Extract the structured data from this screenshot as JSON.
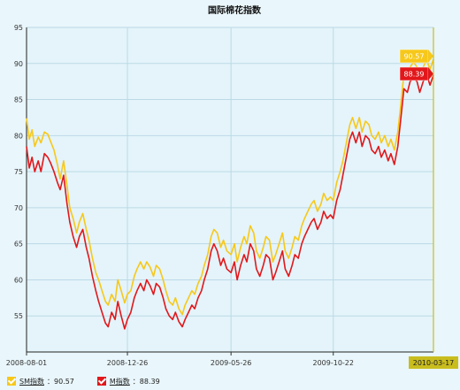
{
  "chart_data": {
    "type": "line",
    "title": "国际棉花指数",
    "ylim": [
      50,
      95
    ],
    "yticks": [
      55,
      60,
      65,
      70,
      75,
      80,
      85,
      90,
      95
    ],
    "x_range": [
      "2008-08-01",
      "2010-03-17"
    ],
    "xticks": [
      "2008-08-01",
      "2008-12-26",
      "2009-05-26",
      "2009-10-22"
    ],
    "last_date": "2010-03-17",
    "grid": true,
    "legend_position": "bottom-left",
    "colors": {
      "SM": "#f7c81a",
      "M": "#e2171b",
      "grid": "#bcd9e6",
      "last_date_box": "#c9bd1e"
    },
    "series": [
      {
        "name": "SM指数",
        "last_value": "90.57",
        "color": "#f7c81a",
        "points": [
          [
            "2008-08-01",
            82.4
          ],
          [
            "2008-08-05",
            79.5
          ],
          [
            "2008-08-09",
            80.8
          ],
          [
            "2008-08-13",
            78.5
          ],
          [
            "2008-08-18",
            79.8
          ],
          [
            "2008-08-22",
            79.0
          ],
          [
            "2008-08-27",
            80.5
          ],
          [
            "2008-09-01",
            80.2
          ],
          [
            "2008-09-05",
            79.2
          ],
          [
            "2008-09-10",
            78.0
          ],
          [
            "2008-09-15",
            76.0
          ],
          [
            "2008-09-19",
            74.0
          ],
          [
            "2008-09-24",
            76.5
          ],
          [
            "2008-09-29",
            73.0
          ],
          [
            "2008-10-03",
            70.0
          ],
          [
            "2008-10-08",
            68.5
          ],
          [
            "2008-10-13",
            66.5
          ],
          [
            "2008-10-17",
            68.0
          ],
          [
            "2008-10-22",
            69.2
          ],
          [
            "2008-10-27",
            67.0
          ],
          [
            "2008-10-31",
            65.5
          ],
          [
            "2008-11-05",
            63.0
          ],
          [
            "2008-11-10",
            61.0
          ],
          [
            "2008-11-14",
            60.0
          ],
          [
            "2008-11-19",
            58.5
          ],
          [
            "2008-11-24",
            57.0
          ],
          [
            "2008-11-28",
            56.5
          ],
          [
            "2008-12-03",
            58.0
          ],
          [
            "2008-12-08",
            57.0
          ],
          [
            "2008-12-12",
            60.0
          ],
          [
            "2008-12-17",
            58.5
          ],
          [
            "2008-12-22",
            56.8
          ],
          [
            "2008-12-26",
            58.0
          ],
          [
            "2008-12-31",
            58.5
          ],
          [
            "2009-01-05",
            60.5
          ],
          [
            "2009-01-09",
            61.5
          ],
          [
            "2009-01-14",
            62.5
          ],
          [
            "2009-01-19",
            61.5
          ],
          [
            "2009-01-23",
            62.5
          ],
          [
            "2009-01-28",
            61.8
          ],
          [
            "2009-02-02",
            60.5
          ],
          [
            "2009-02-06",
            62.0
          ],
          [
            "2009-02-11",
            61.5
          ],
          [
            "2009-02-16",
            60.0
          ],
          [
            "2009-02-20",
            58.5
          ],
          [
            "2009-02-25",
            57.0
          ],
          [
            "2009-03-02",
            56.5
          ],
          [
            "2009-03-06",
            57.5
          ],
          [
            "2009-03-11",
            56.0
          ],
          [
            "2009-03-16",
            55.2
          ],
          [
            "2009-03-20",
            56.5
          ],
          [
            "2009-03-25",
            57.5
          ],
          [
            "2009-03-30",
            58.5
          ],
          [
            "2009-04-03",
            58.0
          ],
          [
            "2009-04-08",
            59.5
          ],
          [
            "2009-04-13",
            60.5
          ],
          [
            "2009-04-17",
            62.0
          ],
          [
            "2009-04-22",
            63.5
          ],
          [
            "2009-04-27",
            66.0
          ],
          [
            "2009-05-01",
            67.0
          ],
          [
            "2009-05-06",
            66.5
          ],
          [
            "2009-05-11",
            64.5
          ],
          [
            "2009-05-15",
            65.5
          ],
          [
            "2009-05-20",
            64.0
          ],
          [
            "2009-05-26",
            63.5
          ],
          [
            "2009-05-31",
            65.0
          ],
          [
            "2009-06-04",
            62.5
          ],
          [
            "2009-06-09",
            64.5
          ],
          [
            "2009-06-14",
            66.0
          ],
          [
            "2009-06-18",
            65.0
          ],
          [
            "2009-06-23",
            67.5
          ],
          [
            "2009-06-28",
            66.5
          ],
          [
            "2009-07-02",
            64.0
          ],
          [
            "2009-07-07",
            63.0
          ],
          [
            "2009-07-12",
            64.5
          ],
          [
            "2009-07-16",
            66.0
          ],
          [
            "2009-07-21",
            65.5
          ],
          [
            "2009-07-26",
            62.5
          ],
          [
            "2009-07-30",
            63.5
          ],
          [
            "2009-08-04",
            65.0
          ],
          [
            "2009-08-09",
            66.5
          ],
          [
            "2009-08-13",
            64.0
          ],
          [
            "2009-08-18",
            63.0
          ],
          [
            "2009-08-23",
            64.5
          ],
          [
            "2009-08-27",
            66.0
          ],
          [
            "2009-09-01",
            65.5
          ],
          [
            "2009-09-06",
            67.5
          ],
          [
            "2009-09-10",
            68.5
          ],
          [
            "2009-09-15",
            69.5
          ],
          [
            "2009-09-20",
            70.5
          ],
          [
            "2009-09-24",
            71.0
          ],
          [
            "2009-09-29",
            69.5
          ],
          [
            "2009-10-04",
            70.5
          ],
          [
            "2009-10-08",
            72.0
          ],
          [
            "2009-10-13",
            71.0
          ],
          [
            "2009-10-18",
            71.5
          ],
          [
            "2009-10-22",
            71.0
          ],
          [
            "2009-10-27",
            73.5
          ],
          [
            "2009-11-01",
            75.0
          ],
          [
            "2009-11-05",
            76.5
          ],
          [
            "2009-11-10",
            79.0
          ],
          [
            "2009-11-15",
            81.5
          ],
          [
            "2009-11-19",
            82.5
          ],
          [
            "2009-11-24",
            81.0
          ],
          [
            "2009-11-29",
            82.5
          ],
          [
            "2009-12-03",
            80.5
          ],
          [
            "2009-12-08",
            82.0
          ],
          [
            "2009-12-13",
            81.5
          ],
          [
            "2009-12-17",
            80.0
          ],
          [
            "2009-12-22",
            79.5
          ],
          [
            "2009-12-27",
            80.5
          ],
          [
            "2009-12-31",
            79.0
          ],
          [
            "2010-01-05",
            80.0
          ],
          [
            "2010-01-10",
            78.5
          ],
          [
            "2010-01-14",
            79.5
          ],
          [
            "2010-01-19",
            78.0
          ],
          [
            "2010-01-24",
            80.5
          ],
          [
            "2010-01-28",
            84.0
          ],
          [
            "2010-02-02",
            88.5
          ],
          [
            "2010-02-07",
            88.0
          ],
          [
            "2010-02-11",
            89.5
          ],
          [
            "2010-02-16",
            90.2
          ],
          [
            "2010-02-21",
            89.5
          ],
          [
            "2010-02-25",
            88.0
          ],
          [
            "2010-03-02",
            89.5
          ],
          [
            "2010-03-07",
            90.5
          ],
          [
            "2010-03-12",
            89.2
          ],
          [
            "2010-03-17",
            90.57
          ]
        ]
      },
      {
        "name": "M指数",
        "last_value": "88.39",
        "color": "#e2171b",
        "points": [
          [
            "2008-08-01",
            78.5
          ],
          [
            "2008-08-05",
            75.5
          ],
          [
            "2008-08-09",
            77.0
          ],
          [
            "2008-08-13",
            75.0
          ],
          [
            "2008-08-18",
            76.5
          ],
          [
            "2008-08-22",
            75.0
          ],
          [
            "2008-08-27",
            77.5
          ],
          [
            "2008-09-01",
            77.0
          ],
          [
            "2008-09-05",
            76.2
          ],
          [
            "2008-09-10",
            75.0
          ],
          [
            "2008-09-15",
            73.5
          ],
          [
            "2008-09-19",
            72.5
          ],
          [
            "2008-09-24",
            74.5
          ],
          [
            "2008-09-29",
            70.5
          ],
          [
            "2008-10-03",
            68.0
          ],
          [
            "2008-10-08",
            66.0
          ],
          [
            "2008-10-13",
            64.5
          ],
          [
            "2008-10-17",
            66.0
          ],
          [
            "2008-10-22",
            67.0
          ],
          [
            "2008-10-27",
            64.5
          ],
          [
            "2008-10-31",
            63.0
          ],
          [
            "2008-11-05",
            60.5
          ],
          [
            "2008-11-10",
            58.5
          ],
          [
            "2008-11-14",
            57.0
          ],
          [
            "2008-11-19",
            55.5
          ],
          [
            "2008-11-24",
            54.0
          ],
          [
            "2008-11-28",
            53.5
          ],
          [
            "2008-12-03",
            55.5
          ],
          [
            "2008-12-08",
            54.5
          ],
          [
            "2008-12-12",
            57.0
          ],
          [
            "2008-12-17",
            55.0
          ],
          [
            "2008-12-22",
            53.2
          ],
          [
            "2008-12-26",
            54.5
          ],
          [
            "2008-12-31",
            55.5
          ],
          [
            "2009-01-05",
            57.5
          ],
          [
            "2009-01-09",
            58.5
          ],
          [
            "2009-01-14",
            59.5
          ],
          [
            "2009-01-19",
            58.5
          ],
          [
            "2009-01-23",
            60.0
          ],
          [
            "2009-01-28",
            59.2
          ],
          [
            "2009-02-02",
            58.0
          ],
          [
            "2009-02-06",
            59.5
          ],
          [
            "2009-02-11",
            59.0
          ],
          [
            "2009-02-16",
            57.5
          ],
          [
            "2009-02-20",
            56.0
          ],
          [
            "2009-02-25",
            55.0
          ],
          [
            "2009-03-02",
            54.5
          ],
          [
            "2009-03-06",
            55.5
          ],
          [
            "2009-03-11",
            54.2
          ],
          [
            "2009-03-16",
            53.5
          ],
          [
            "2009-03-20",
            54.5
          ],
          [
            "2009-03-25",
            55.5
          ],
          [
            "2009-03-30",
            56.5
          ],
          [
            "2009-04-03",
            56.0
          ],
          [
            "2009-04-08",
            57.5
          ],
          [
            "2009-04-13",
            58.5
          ],
          [
            "2009-04-17",
            60.0
          ],
          [
            "2009-04-22",
            61.5
          ],
          [
            "2009-04-27",
            64.0
          ],
          [
            "2009-05-01",
            65.0
          ],
          [
            "2009-05-06",
            64.0
          ],
          [
            "2009-05-11",
            62.0
          ],
          [
            "2009-05-15",
            63.0
          ],
          [
            "2009-05-20",
            61.5
          ],
          [
            "2009-05-26",
            61.0
          ],
          [
            "2009-05-31",
            62.5
          ],
          [
            "2009-06-04",
            60.0
          ],
          [
            "2009-06-09",
            62.0
          ],
          [
            "2009-06-14",
            63.5
          ],
          [
            "2009-06-18",
            62.5
          ],
          [
            "2009-06-23",
            65.0
          ],
          [
            "2009-06-28",
            64.0
          ],
          [
            "2009-07-02",
            61.5
          ],
          [
            "2009-07-07",
            60.5
          ],
          [
            "2009-07-12",
            62.0
          ],
          [
            "2009-07-16",
            63.5
          ],
          [
            "2009-07-21",
            63.0
          ],
          [
            "2009-07-26",
            60.0
          ],
          [
            "2009-07-30",
            61.0
          ],
          [
            "2009-08-04",
            62.5
          ],
          [
            "2009-08-09",
            64.0
          ],
          [
            "2009-08-13",
            61.5
          ],
          [
            "2009-08-18",
            60.5
          ],
          [
            "2009-08-23",
            62.0
          ],
          [
            "2009-08-27",
            63.5
          ],
          [
            "2009-09-01",
            63.0
          ],
          [
            "2009-09-06",
            65.0
          ],
          [
            "2009-09-10",
            66.0
          ],
          [
            "2009-09-15",
            67.0
          ],
          [
            "2009-09-20",
            68.0
          ],
          [
            "2009-09-24",
            68.5
          ],
          [
            "2009-09-29",
            67.0
          ],
          [
            "2009-10-04",
            68.0
          ],
          [
            "2009-10-08",
            69.5
          ],
          [
            "2009-10-13",
            68.5
          ],
          [
            "2009-10-18",
            69.0
          ],
          [
            "2009-10-22",
            68.5
          ],
          [
            "2009-10-27",
            71.0
          ],
          [
            "2009-11-01",
            72.5
          ],
          [
            "2009-11-05",
            74.5
          ],
          [
            "2009-11-10",
            77.0
          ],
          [
            "2009-11-15",
            79.5
          ],
          [
            "2009-11-19",
            80.5
          ],
          [
            "2009-11-24",
            79.0
          ],
          [
            "2009-11-29",
            80.5
          ],
          [
            "2009-12-03",
            78.5
          ],
          [
            "2009-12-08",
            80.0
          ],
          [
            "2009-12-13",
            79.5
          ],
          [
            "2009-12-17",
            78.0
          ],
          [
            "2009-12-22",
            77.5
          ],
          [
            "2009-12-27",
            78.5
          ],
          [
            "2009-12-31",
            77.0
          ],
          [
            "2010-01-05",
            78.0
          ],
          [
            "2010-01-10",
            76.5
          ],
          [
            "2010-01-14",
            77.5
          ],
          [
            "2010-01-19",
            76.0
          ],
          [
            "2010-01-24",
            78.5
          ],
          [
            "2010-01-28",
            82.0
          ],
          [
            "2010-02-02",
            86.5
          ],
          [
            "2010-02-07",
            86.0
          ],
          [
            "2010-02-11",
            87.5
          ],
          [
            "2010-02-16",
            88.0
          ],
          [
            "2010-02-21",
            87.5
          ],
          [
            "2010-02-25",
            86.0
          ],
          [
            "2010-03-02",
            87.5
          ],
          [
            "2010-03-07",
            88.5
          ],
          [
            "2010-03-12",
            87.0
          ],
          [
            "2010-03-17",
            88.39
          ]
        ]
      }
    ]
  },
  "legend": [
    {
      "name": "SM指数",
      "sep": "：",
      "value": "90.57",
      "color": "#f7c81a"
    },
    {
      "name": "M指数",
      "sep": "：",
      "value": "88.39",
      "color": "#e2171b"
    }
  ]
}
